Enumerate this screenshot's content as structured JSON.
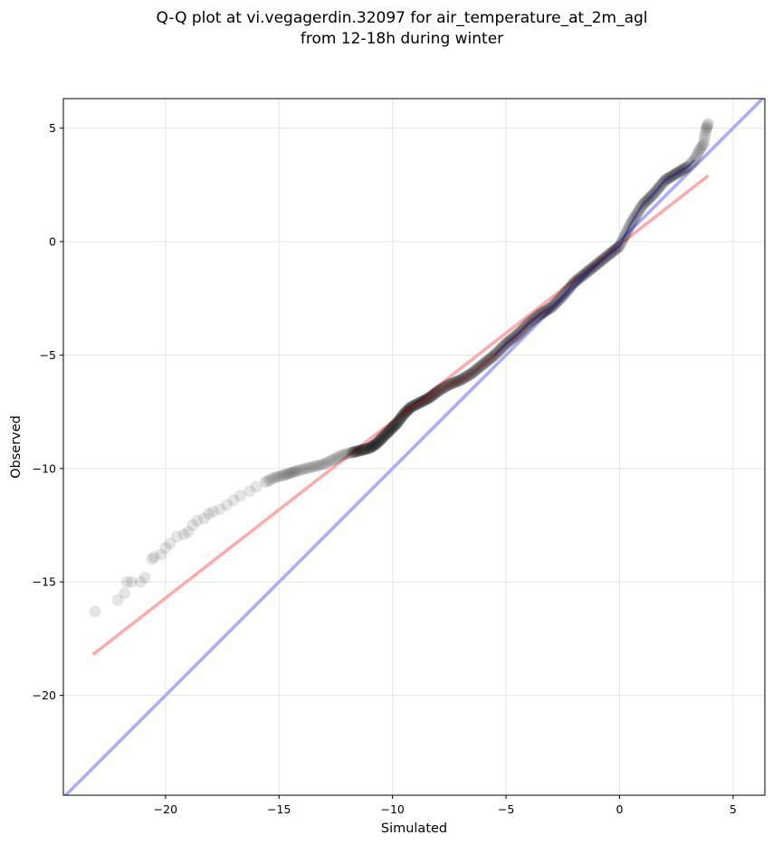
{
  "chart_data": {
    "type": "scatter",
    "title_lines": [
      "Q-Q plot at vi.vegagerdin.32097 for air_temperature_at_2m_agl",
      "from 12-18h during winter"
    ],
    "xlabel": "Simulated",
    "ylabel": "Observed",
    "xlim": [
      -24.5,
      6.4
    ],
    "ylim": [
      -24.4,
      6.3
    ],
    "xticks": [
      -20,
      -15,
      -10,
      -5,
      0,
      5
    ],
    "yticks": [
      -20,
      -15,
      -10,
      -5,
      0,
      5
    ],
    "xtick_labels": [
      "−20",
      "−15",
      "−10",
      "−5",
      "0",
      "5"
    ],
    "ytick_labels": [
      "−20",
      "−15",
      "−10",
      "−5",
      "0",
      "5"
    ],
    "grid": true,
    "colors": {
      "points": "#000000",
      "identity_line": "#aaaaff",
      "fit_line": "#ffaaaa",
      "overlay_blue": "#1a1ab0",
      "overlay_red": "#b01a1a"
    },
    "reference_lines": {
      "identity": {
        "x": [
          -24.5,
          6.4
        ],
        "y": [
          -24.5,
          6.4
        ]
      },
      "fit": {
        "x": [
          -23.2,
          3.9
        ],
        "y": [
          -18.2,
          2.9
        ]
      }
    },
    "quantile_curve": {
      "x": [
        -23.1,
        -22.1,
        -21.8,
        -21.7,
        -21.5,
        -21.1,
        -20.9,
        -20.6,
        -20.5,
        -20.2,
        -20.0,
        -19.8,
        -19.5,
        -19.2,
        -19.0,
        -18.8,
        -18.6,
        -18.3,
        -18.1,
        -17.9,
        -17.6,
        -17.3,
        -17.0,
        -16.7,
        -16.3,
        -16.0,
        -15.6,
        -15.2,
        -14.8,
        -14.5,
        -14.2,
        -13.8,
        -13.4,
        -13.0,
        -12.6,
        -12.2,
        -11.8,
        -11.4,
        -11.0,
        -10.7,
        -10.4,
        -10.1,
        -9.8,
        -9.5,
        -9.2,
        -8.8,
        -8.4,
        -8.0,
        -7.5,
        -7.0,
        -6.5,
        -6.0,
        -5.5,
        -5.0,
        -4.5,
        -4.0,
        -3.5,
        -3.0,
        -2.5,
        -2.0,
        -1.5,
        -1.0,
        -0.5,
        0.0,
        0.5,
        1.0,
        1.5,
        2.0,
        2.5,
        3.0,
        3.3,
        3.5,
        3.7,
        3.8,
        3.9
      ],
      "y": [
        -16.3,
        -15.8,
        -15.5,
        -15.0,
        -15.0,
        -15.0,
        -14.8,
        -14.0,
        -13.9,
        -13.8,
        -13.5,
        -13.3,
        -13.0,
        -12.9,
        -12.8,
        -12.5,
        -12.3,
        -12.2,
        -12.0,
        -11.9,
        -11.8,
        -11.6,
        -11.4,
        -11.2,
        -11.0,
        -10.8,
        -10.6,
        -10.4,
        -10.3,
        -10.2,
        -10.1,
        -10.0,
        -9.9,
        -9.8,
        -9.6,
        -9.4,
        -9.3,
        -9.2,
        -9.1,
        -8.9,
        -8.6,
        -8.3,
        -8.0,
        -7.6,
        -7.3,
        -7.1,
        -6.9,
        -6.6,
        -6.3,
        -6.1,
        -5.8,
        -5.4,
        -5.0,
        -4.5,
        -4.1,
        -3.6,
        -3.2,
        -2.9,
        -2.4,
        -1.8,
        -1.4,
        -1.0,
        -0.6,
        -0.2,
        0.8,
        1.6,
        2.1,
        2.7,
        3.0,
        3.3,
        3.6,
        4.0,
        4.3,
        4.9,
        5.2
      ]
    }
  }
}
